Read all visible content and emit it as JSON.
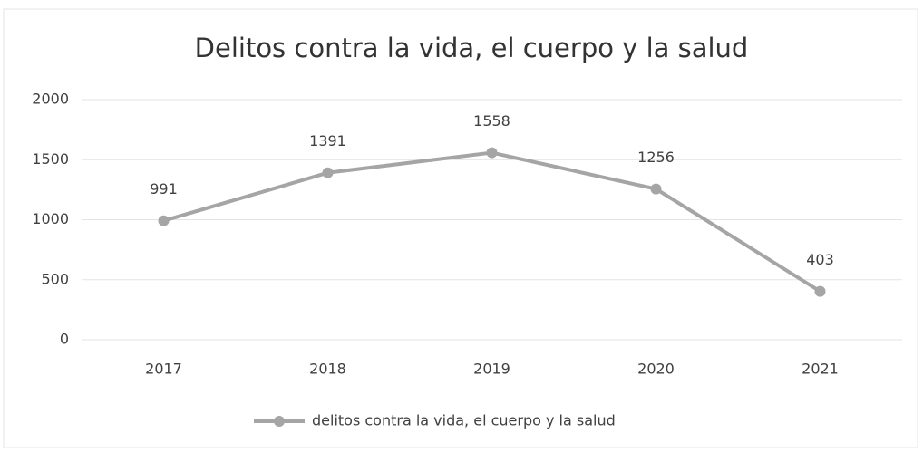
{
  "chart_data": {
    "type": "line",
    "title": "Delitos contra la vida, el cuerpo y la salud",
    "categories": [
      "2017",
      "2018",
      "2019",
      "2020",
      "2021"
    ],
    "series": [
      {
        "name": "delitos contra la vida, el cuerpo y la salud",
        "color": "#a5a5a5",
        "values": [
          991,
          1391,
          1558,
          1256,
          403
        ]
      }
    ],
    "ylim": [
      0,
      2000
    ],
    "yticks": [
      0,
      500,
      1000,
      1500,
      2000
    ],
    "grid": true,
    "legend": "bottom"
  }
}
